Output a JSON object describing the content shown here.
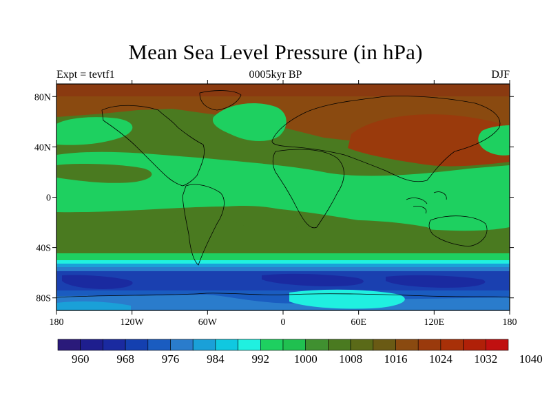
{
  "title": "Mean Sea Level Pressure (in hPa)",
  "subtitle_left": "Expt = tevtf1",
  "subtitle_center": "0005kyr BP",
  "subtitle_right": "DJF",
  "lon_ticks": [
    {
      "value": -180,
      "label": "180"
    },
    {
      "value": -120,
      "label": "120W"
    },
    {
      "value": -60,
      "label": "60W"
    },
    {
      "value": 0,
      "label": "0"
    },
    {
      "value": 60,
      "label": "60E"
    },
    {
      "value": 120,
      "label": "120E"
    },
    {
      "value": 180,
      "label": "180"
    }
  ],
  "lat_ticks": [
    {
      "value": 80,
      "label": "80N"
    },
    {
      "value": 40,
      "label": "40N"
    },
    {
      "value": 0,
      "label": "0"
    },
    {
      "value": -40,
      "label": "40S"
    },
    {
      "value": -80,
      "label": "80S"
    }
  ],
  "colorbar": {
    "colors": [
      "#2a1a7a",
      "#1e1e8e",
      "#1a2aa0",
      "#1440b0",
      "#1a5cc0",
      "#2a7ccc",
      "#1aa0d8",
      "#10c8e0",
      "#20f0e0",
      "#1ed060",
      "#20c050",
      "#409030",
      "#4a7a20",
      "#5a6a18",
      "#6a5a14",
      "#8a4a10",
      "#9a3a0c",
      "#a83008",
      "#b02008",
      "#c01010"
    ],
    "labels": [
      "960",
      "968",
      "976",
      "984",
      "992",
      "1000",
      "1008",
      "1016",
      "1024",
      "1032",
      "1040"
    ],
    "label_color_index": [
      1,
      3,
      5,
      7,
      9,
      11,
      13,
      15,
      17,
      19,
      21
    ]
  },
  "palette": {
    "ocean_low": "#1a40b0",
    "ocean_deep": "#1a5cc0",
    "cyan": "#20f0e0",
    "green": "#1ed060",
    "olive": "#4a7a20",
    "brown": "#8a4a10",
    "red": "#a02010"
  }
}
